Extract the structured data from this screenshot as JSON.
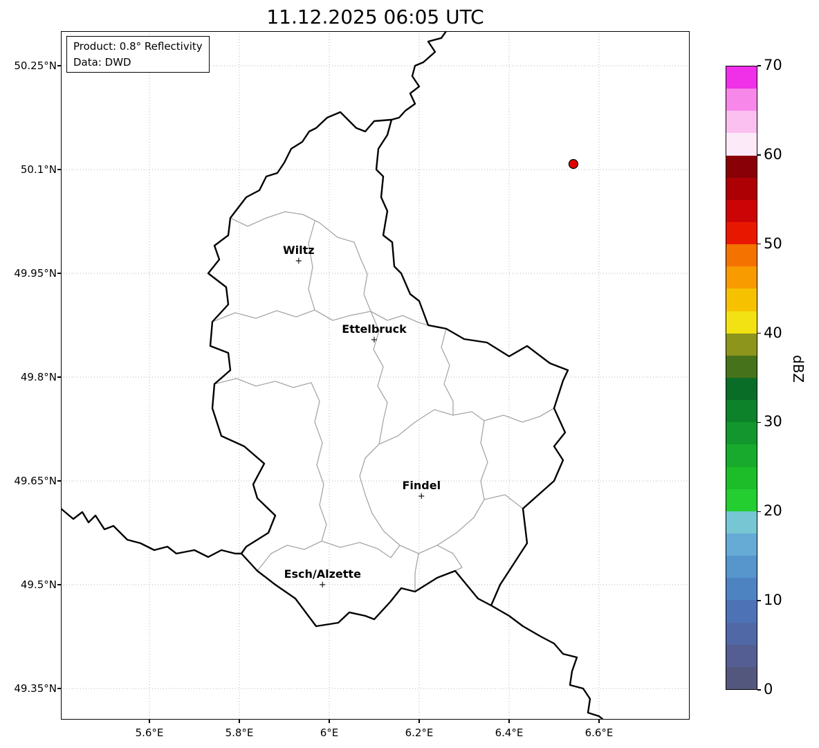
{
  "title": "11.12.2025 06:05 UTC",
  "info_box": {
    "product": "Product: 0.8° Reflectivity",
    "data_source": "Data: DWD"
  },
  "axes": {
    "x_ticks": [
      {
        "label": "5.6°E",
        "lon": 5.6
      },
      {
        "label": "5.8°E",
        "lon": 5.8
      },
      {
        "label": "6°E",
        "lon": 6.0
      },
      {
        "label": "6.2°E",
        "lon": 6.2
      },
      {
        "label": "6.4°E",
        "lon": 6.4
      },
      {
        "label": "6.6°E",
        "lon": 6.6
      }
    ],
    "y_ticks": [
      {
        "label": "50.25°N",
        "lat": 50.25
      },
      {
        "label": "50.1°N",
        "lat": 50.1
      },
      {
        "label": "49.95°N",
        "lat": 49.95
      },
      {
        "label": "49.8°N",
        "lat": 49.8
      },
      {
        "label": "49.65°N",
        "lat": 49.65
      },
      {
        "label": "49.5°N",
        "lat": 49.5
      },
      {
        "label": "49.35°N",
        "lat": 49.35
      }
    ]
  },
  "cities": [
    {
      "name": "Wiltz",
      "lon": 5.932,
      "lat": 49.967
    },
    {
      "name": "Ettelbruck",
      "lon": 6.1,
      "lat": 49.853
    },
    {
      "name": "Findel",
      "lon": 6.205,
      "lat": 49.627
    },
    {
      "name": "Esch/Alzette",
      "lon": 5.985,
      "lat": 49.499
    }
  ],
  "radar_site": {
    "lon": 6.543,
    "lat": 50.108,
    "color": "#e00000"
  },
  "colorbar": {
    "label": "dBZ",
    "min": 0,
    "max": 70,
    "tick_values": [
      70,
      60,
      50,
      40,
      30,
      20,
      10,
      0
    ],
    "colors_bottom_to_top": [
      "#54577d",
      "#545e92",
      "#5168a7",
      "#4d72b5",
      "#4e83c2",
      "#5795cd",
      "#66abd6",
      "#76c6d4",
      "#24ce30",
      "#1dbd2a",
      "#17aa2c",
      "#12962d",
      "#0e812b",
      "#0a6d27",
      "#47721c",
      "#8d951c",
      "#f2e213",
      "#f6c200",
      "#f79b00",
      "#f47200",
      "#e81800",
      "#cd0405",
      "#ad0005",
      "#8a0007",
      "#fdeaf9",
      "#fbbff0",
      "#f887ea",
      "#f02fe8"
    ]
  }
}
